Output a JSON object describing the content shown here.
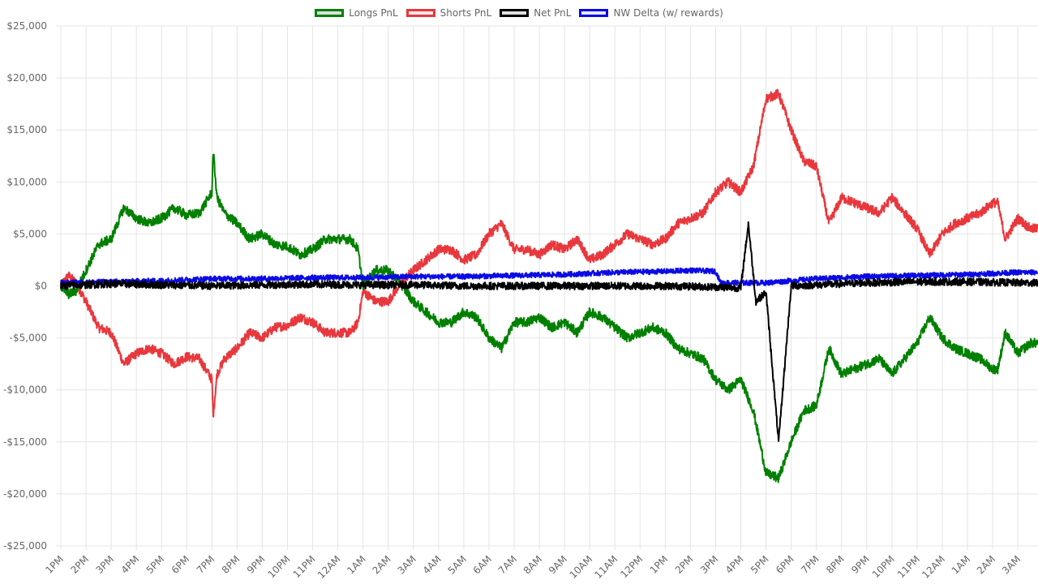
{
  "chart_data": {
    "type": "line",
    "title": "",
    "xlabel": "",
    "ylabel": "",
    "ylim": [
      -25000,
      25000
    ],
    "y_ticks": [
      "$25,000",
      "$20,000",
      "$15,000",
      "$10,000",
      "$5,000",
      "$0",
      "-$5,000",
      "-$10,000",
      "-$15,000",
      "-$20,000",
      "-$25,000"
    ],
    "x_ticks": [
      "1PM",
      "2PM",
      "3PM",
      "4PM",
      "5PM",
      "6PM",
      "7PM",
      "8PM",
      "9PM",
      "10PM",
      "11PM",
      "12AM",
      "1AM",
      "2AM",
      "3AM",
      "4AM",
      "5AM",
      "6AM",
      "7AM",
      "8AM",
      "9AM",
      "10AM",
      "11AM",
      "12PM",
      "1PM",
      "2PM",
      "3PM",
      "4PM",
      "5PM",
      "6PM",
      "7PM",
      "8PM",
      "9PM",
      "10PM",
      "11PM",
      "12AM",
      "1AM",
      "2AM",
      "3AM"
    ],
    "x_range_hours": [
      0,
      38.8
    ],
    "grid": true,
    "legend_position": "top-center",
    "series": [
      {
        "name": "Longs PnL",
        "color": "#008000",
        "fill": "#e0e0e0",
        "hours": [
          0,
          0.3,
          0.6,
          1,
          1.5,
          2,
          2.5,
          3,
          3.5,
          4,
          4.5,
          5,
          5.5,
          6,
          6.05,
          6.2,
          6.5,
          7,
          7.5,
          8,
          8.5,
          9,
          9.5,
          10,
          10.5,
          11,
          11.5,
          11.8,
          12,
          12.5,
          13,
          13.5,
          14,
          14.5,
          15,
          15.5,
          16,
          16.5,
          17,
          17.5,
          18,
          18.5,
          19,
          19.5,
          20,
          20.5,
          21,
          21.5,
          22,
          22.5,
          23,
          23.5,
          24,
          24.5,
          25,
          25.5,
          26,
          26.5,
          27,
          27.5,
          28,
          28.5,
          29,
          29.5,
          30,
          30.5,
          31,
          31.5,
          32,
          32.5,
          33,
          33.5,
          34,
          34.5,
          35,
          35.5,
          36,
          36.5,
          37,
          37.2,
          37.5,
          38,
          38.5,
          38.8
        ],
        "values": [
          0,
          -800,
          -500,
          1500,
          4000,
          4500,
          7500,
          6500,
          6000,
          6500,
          7500,
          6800,
          7000,
          9000,
          13000,
          8500,
          7000,
          6000,
          4500,
          5000,
          4000,
          3800,
          3000,
          3500,
          4500,
          4500,
          4500,
          3500,
          0,
          1500,
          1500,
          200,
          -1500,
          -2500,
          -3500,
          -3500,
          -2500,
          -3000,
          -5000,
          -6000,
          -3500,
          -3500,
          -3000,
          -4000,
          -3500,
          -4500,
          -2500,
          -3000,
          -4000,
          -5000,
          -4500,
          -4000,
          -4500,
          -6000,
          -6500,
          -7000,
          -9000,
          -10000,
          -9000,
          -12000,
          -18000,
          -18500,
          -15000,
          -12000,
          -11500,
          -6000,
          -8500,
          -8000,
          -7500,
          -7000,
          -8500,
          -7000,
          -5500,
          -3000,
          -5000,
          -6000,
          -6500,
          -7000,
          -8000,
          -8000,
          -4500,
          -6500,
          -5500,
          -5500
        ]
      },
      {
        "name": "Shorts PnL",
        "color": "#e8383d",
        "fill": "#e8e8e8",
        "hours": [
          0,
          0.3,
          0.6,
          1,
          1.5,
          2,
          2.5,
          3,
          3.5,
          4,
          4.5,
          5,
          5.5,
          6,
          6.05,
          6.2,
          6.5,
          7,
          7.5,
          8,
          8.5,
          9,
          9.5,
          10,
          10.5,
          11,
          11.5,
          11.8,
          12,
          12.5,
          13,
          13.5,
          14,
          14.5,
          15,
          15.5,
          16,
          16.5,
          17,
          17.5,
          18,
          18.5,
          19,
          19.5,
          20,
          20.5,
          21,
          21.5,
          22,
          22.5,
          23,
          23.5,
          24,
          24.5,
          25,
          25.5,
          26,
          26.5,
          27,
          27.5,
          28,
          28.5,
          29,
          29.5,
          30,
          30.5,
          31,
          31.5,
          32,
          32.5,
          33,
          33.5,
          34,
          34.5,
          35,
          35.5,
          36,
          36.5,
          37,
          37.2,
          37.5,
          38,
          38.5,
          38.8
        ],
        "values": [
          0,
          1000,
          300,
          -1500,
          -4000,
          -4500,
          -7500,
          -6500,
          -6000,
          -6500,
          -7500,
          -6800,
          -7000,
          -9000,
          -12500,
          -8500,
          -7000,
          -6000,
          -4500,
          -5000,
          -4000,
          -3800,
          -3000,
          -3500,
          -4500,
          -4500,
          -4500,
          -3500,
          -500,
          -1500,
          -1500,
          300,
          1500,
          2500,
          3500,
          3500,
          2500,
          3000,
          5000,
          6000,
          3500,
          3500,
          3000,
          4000,
          3500,
          4500,
          2500,
          3000,
          4000,
          5000,
          4500,
          4000,
          4500,
          6000,
          6500,
          7000,
          9000,
          10000,
          9000,
          11500,
          18000,
          18500,
          15000,
          12000,
          11500,
          6000,
          8500,
          8000,
          7500,
          7000,
          8500,
          7000,
          5500,
          3000,
          5000,
          6000,
          6500,
          7000,
          8000,
          8000,
          4500,
          6500,
          5500,
          5500
        ]
      },
      {
        "name": "Net PnL",
        "color": "#000000",
        "fill": "#e0e0e0",
        "hours": [
          0,
          2,
          4,
          6,
          8,
          10,
          12,
          14,
          16,
          18,
          20,
          22,
          24,
          26,
          27,
          27.3,
          27.6,
          28,
          28.5,
          29,
          30,
          32,
          34,
          36,
          38,
          38.8
        ],
        "values": [
          0,
          200,
          100,
          0,
          100,
          150,
          100,
          100,
          0,
          0,
          0,
          0,
          0,
          -100,
          -200,
          6000,
          -1500,
          -600,
          -15000,
          0,
          100,
          300,
          400,
          400,
          300,
          300
        ]
      },
      {
        "name": "NW Delta (w/ rewards)",
        "color": "#0a0ae6",
        "fill": "#e8e8ff",
        "hours": [
          0,
          2,
          4,
          6,
          8,
          10,
          12,
          14,
          16,
          18,
          20,
          22,
          24,
          25,
          26,
          26.2,
          28,
          30,
          32,
          34,
          36,
          38,
          38.8
        ],
        "values": [
          300,
          400,
          500,
          700,
          700,
          800,
          800,
          900,
          900,
          1000,
          1100,
          1300,
          1400,
          1500,
          1400,
          300,
          300,
          700,
          900,
          1000,
          1100,
          1300,
          1300
        ]
      }
    ]
  }
}
